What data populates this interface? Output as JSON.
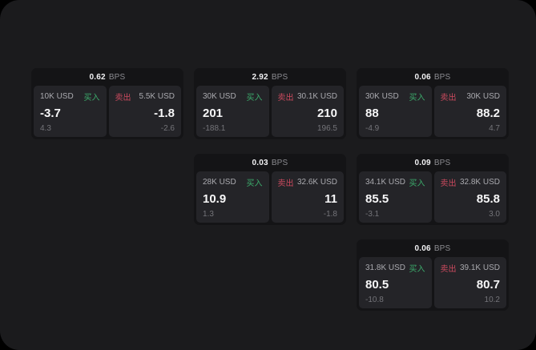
{
  "labels": {
    "buy": "买入",
    "sell": "卖出",
    "bps_unit": "BPS"
  },
  "colors": {
    "buy": "#3cab6b",
    "sell": "#cb4a5e",
    "window_bg": "#1b1b1d",
    "card_bg": "#141416",
    "panel_bg": "#242428"
  },
  "cards": [
    {
      "bps": "0.62",
      "buy": {
        "amount": "10K USD",
        "price": "-3.7",
        "delta": "4.3"
      },
      "sell": {
        "amount": "5.5K USD",
        "price": "-1.8",
        "delta": "-2.6"
      }
    },
    {
      "bps": "2.92",
      "buy": {
        "amount": "30K USD",
        "price": "201",
        "delta": "-188.1"
      },
      "sell": {
        "amount": "30.1K USD",
        "price": "210",
        "delta": "196.5"
      }
    },
    {
      "bps": "0.06",
      "buy": {
        "amount": "30K USD",
        "price": "88",
        "delta": "-4.9"
      },
      "sell": {
        "amount": "30K USD",
        "price": "88.2",
        "delta": "4.7"
      }
    },
    {
      "bps": "0.03",
      "buy": {
        "amount": "28K USD",
        "price": "10.9",
        "delta": "1.3"
      },
      "sell": {
        "amount": "32.6K USD",
        "price": "11",
        "delta": "-1.8"
      }
    },
    {
      "bps": "0.09",
      "buy": {
        "amount": "34.1K USD",
        "price": "85.5",
        "delta": "-3.1"
      },
      "sell": {
        "amount": "32.8K USD",
        "price": "85.8",
        "delta": "3.0"
      }
    },
    {
      "bps": "0.06",
      "buy": {
        "amount": "31.8K USD",
        "price": "80.5",
        "delta": "-10.8"
      },
      "sell": {
        "amount": "39.1K USD",
        "price": "80.7",
        "delta": "10.2"
      }
    }
  ]
}
